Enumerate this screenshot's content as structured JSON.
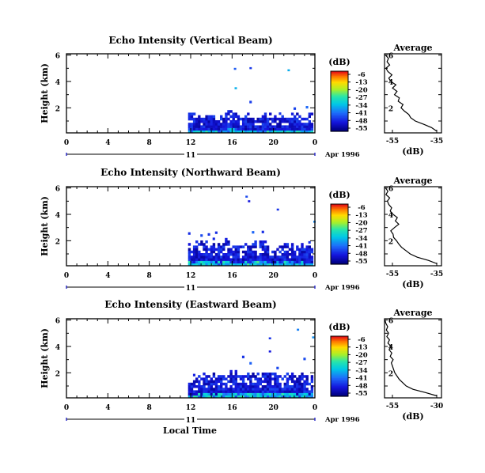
{
  "figure": {
    "xlabel": "Local Time",
    "date_label": "Apr 1996",
    "day_marker": "11",
    "avg_title": "Average",
    "avg_xlabel": "(dB)",
    "cbar_label": "(dB)",
    "ylabel": "Height (km)"
  },
  "chart_data": [
    {
      "type": "heatmap",
      "title": "Echo Intensity (Vertical Beam)",
      "ylabel": "Height (km)",
      "x_ticks": [
        "0",
        "4",
        "8",
        "12",
        "16",
        "20",
        "0"
      ],
      "xlim": [
        0,
        24
      ],
      "y_ticks": [
        "2",
        "4",
        "6"
      ],
      "ylim": [
        0.1,
        6.1
      ],
      "data_start_hour": 11.75,
      "echo_top_km": [
        1.5,
        1.3,
        1.2,
        1.4,
        1.3,
        1.2,
        1.1,
        1.5,
        1.6,
        1.2,
        1.3,
        1.4,
        1.2,
        1.3,
        1.5,
        1.4,
        1.3,
        1.2,
        1.2,
        1.3,
        1.4,
        1.2,
        1.1,
        1.5
      ],
      "colorbar": {
        "ticks": [
          "-6",
          "-13",
          "-20",
          "-27",
          "-34",
          "-41",
          "-48",
          "-55"
        ],
        "range": [
          -55,
          -6
        ]
      },
      "average_profile": {
        "xlim": [
          -55,
          -35
        ],
        "x_ticks": [
          "-55",
          "-35"
        ],
        "y_ticks": [
          "2",
          "4",
          "6"
        ],
        "profile_db": [
          -36.8,
          -38.5,
          -41.2,
          -44.2,
          -45.8,
          -46.5,
          -48.0,
          -49.2,
          -48.5,
          -50.2,
          -49.8,
          -51.5,
          -50.6,
          -52.2,
          -51.0,
          -52.8,
          -53.5,
          -52.4,
          -53.8,
          -54.5,
          -53.2,
          -54.1,
          -53.6,
          -54.6
        ],
        "profile_km": [
          0.25,
          0.5,
          0.75,
          1.0,
          1.25,
          1.5,
          1.75,
          2.0,
          2.25,
          2.5,
          2.75,
          3.0,
          3.25,
          3.5,
          3.75,
          4.0,
          4.25,
          4.5,
          4.75,
          5.0,
          5.25,
          5.5,
          5.75,
          6.0
        ]
      }
    },
    {
      "type": "heatmap",
      "title": "Echo Intensity (Northward Beam)",
      "ylabel": "Height (km)",
      "x_ticks": [
        "0",
        "4",
        "8",
        "12",
        "16",
        "20",
        "0"
      ],
      "xlim": [
        0,
        24
      ],
      "y_ticks": [
        "2",
        "4",
        "6"
      ],
      "ylim": [
        0.1,
        6.1
      ],
      "data_start_hour": 11.75,
      "echo_top_km": [
        1.6,
        1.8,
        2.0,
        1.7,
        1.6,
        1.5,
        1.7,
        1.9,
        1.5,
        1.6,
        1.8,
        1.6,
        1.7,
        2.0,
        1.8,
        1.6,
        1.5,
        1.6,
        1.7,
        1.5,
        1.4,
        1.6,
        1.5,
        1.4
      ],
      "colorbar": {
        "ticks": [
          "-6",
          "-13",
          "-20",
          "-27",
          "-34",
          "-41",
          "-48",
          "-55"
        ],
        "range": [
          -55,
          -6
        ]
      },
      "average_profile": {
        "xlim": [
          -55,
          -35
        ],
        "x_ticks": [
          "-55",
          "-35"
        ],
        "y_ticks": [
          "2",
          "4",
          "6"
        ],
        "profile_db": [
          -36.5,
          -39.5,
          -43.5,
          -46.0,
          -47.5,
          -49.0,
          -50.0,
          -50.8,
          -51.8,
          -52.0,
          -52.8,
          -51.5,
          -50.0,
          -51.2,
          -50.5,
          -52.0,
          -53.0,
          -52.5,
          -53.5,
          -54.0,
          -53.2,
          -54.5,
          -53.8,
          -54.6
        ],
        "profile_km": [
          0.25,
          0.5,
          0.75,
          1.0,
          1.25,
          1.5,
          1.75,
          2.0,
          2.25,
          2.5,
          2.75,
          3.0,
          3.25,
          3.5,
          3.75,
          4.0,
          4.25,
          4.5,
          4.75,
          5.0,
          5.25,
          5.5,
          5.75,
          6.0
        ]
      }
    },
    {
      "type": "heatmap",
      "title": "Echo Intensity (Eastward Beam)",
      "ylabel": "Height (km)",
      "x_ticks": [
        "0",
        "4",
        "8",
        "12",
        "16",
        "20",
        "0"
      ],
      "xlim": [
        0,
        24
      ],
      "y_ticks": [
        "2",
        "4",
        "6"
      ],
      "ylim": [
        0.1,
        6.1
      ],
      "data_start_hour": 11.75,
      "echo_top_km": [
        1.4,
        1.6,
        1.8,
        1.9,
        1.7,
        1.6,
        1.8,
        2.0,
        1.9,
        1.7,
        1.8,
        2.1,
        1.9,
        1.8,
        2.0,
        1.9,
        1.8,
        1.7,
        1.9,
        1.8,
        1.6,
        1.7,
        1.8,
        1.6
      ],
      "colorbar": {
        "ticks": [
          "-6",
          "-13",
          "-20",
          "-27",
          "-34",
          "-41",
          "-48",
          "-55"
        ],
        "range": [
          -55,
          -6
        ]
      },
      "average_profile": {
        "xlim": [
          -55,
          -30
        ],
        "x_ticks": [
          "-55",
          "-30"
        ],
        "y_ticks": [
          "2",
          "4",
          "6"
        ],
        "profile_db": [
          -32.0,
          -37.0,
          -42.5,
          -45.5,
          -47.0,
          -48.5,
          -49.5,
          -50.5,
          -51.0,
          -51.5,
          -52.0,
          -51.2,
          -52.5,
          -51.8,
          -53.0,
          -52.2,
          -53.5,
          -52.8,
          -54.0,
          -53.2,
          -54.2,
          -53.6,
          -54.4,
          -54.8
        ],
        "profile_km": [
          0.25,
          0.5,
          0.75,
          1.0,
          1.25,
          1.5,
          1.75,
          2.0,
          2.25,
          2.5,
          2.75,
          3.0,
          3.25,
          3.5,
          3.75,
          4.0,
          4.25,
          4.5,
          4.75,
          5.0,
          5.25,
          5.5,
          5.75,
          6.0
        ]
      }
    }
  ]
}
